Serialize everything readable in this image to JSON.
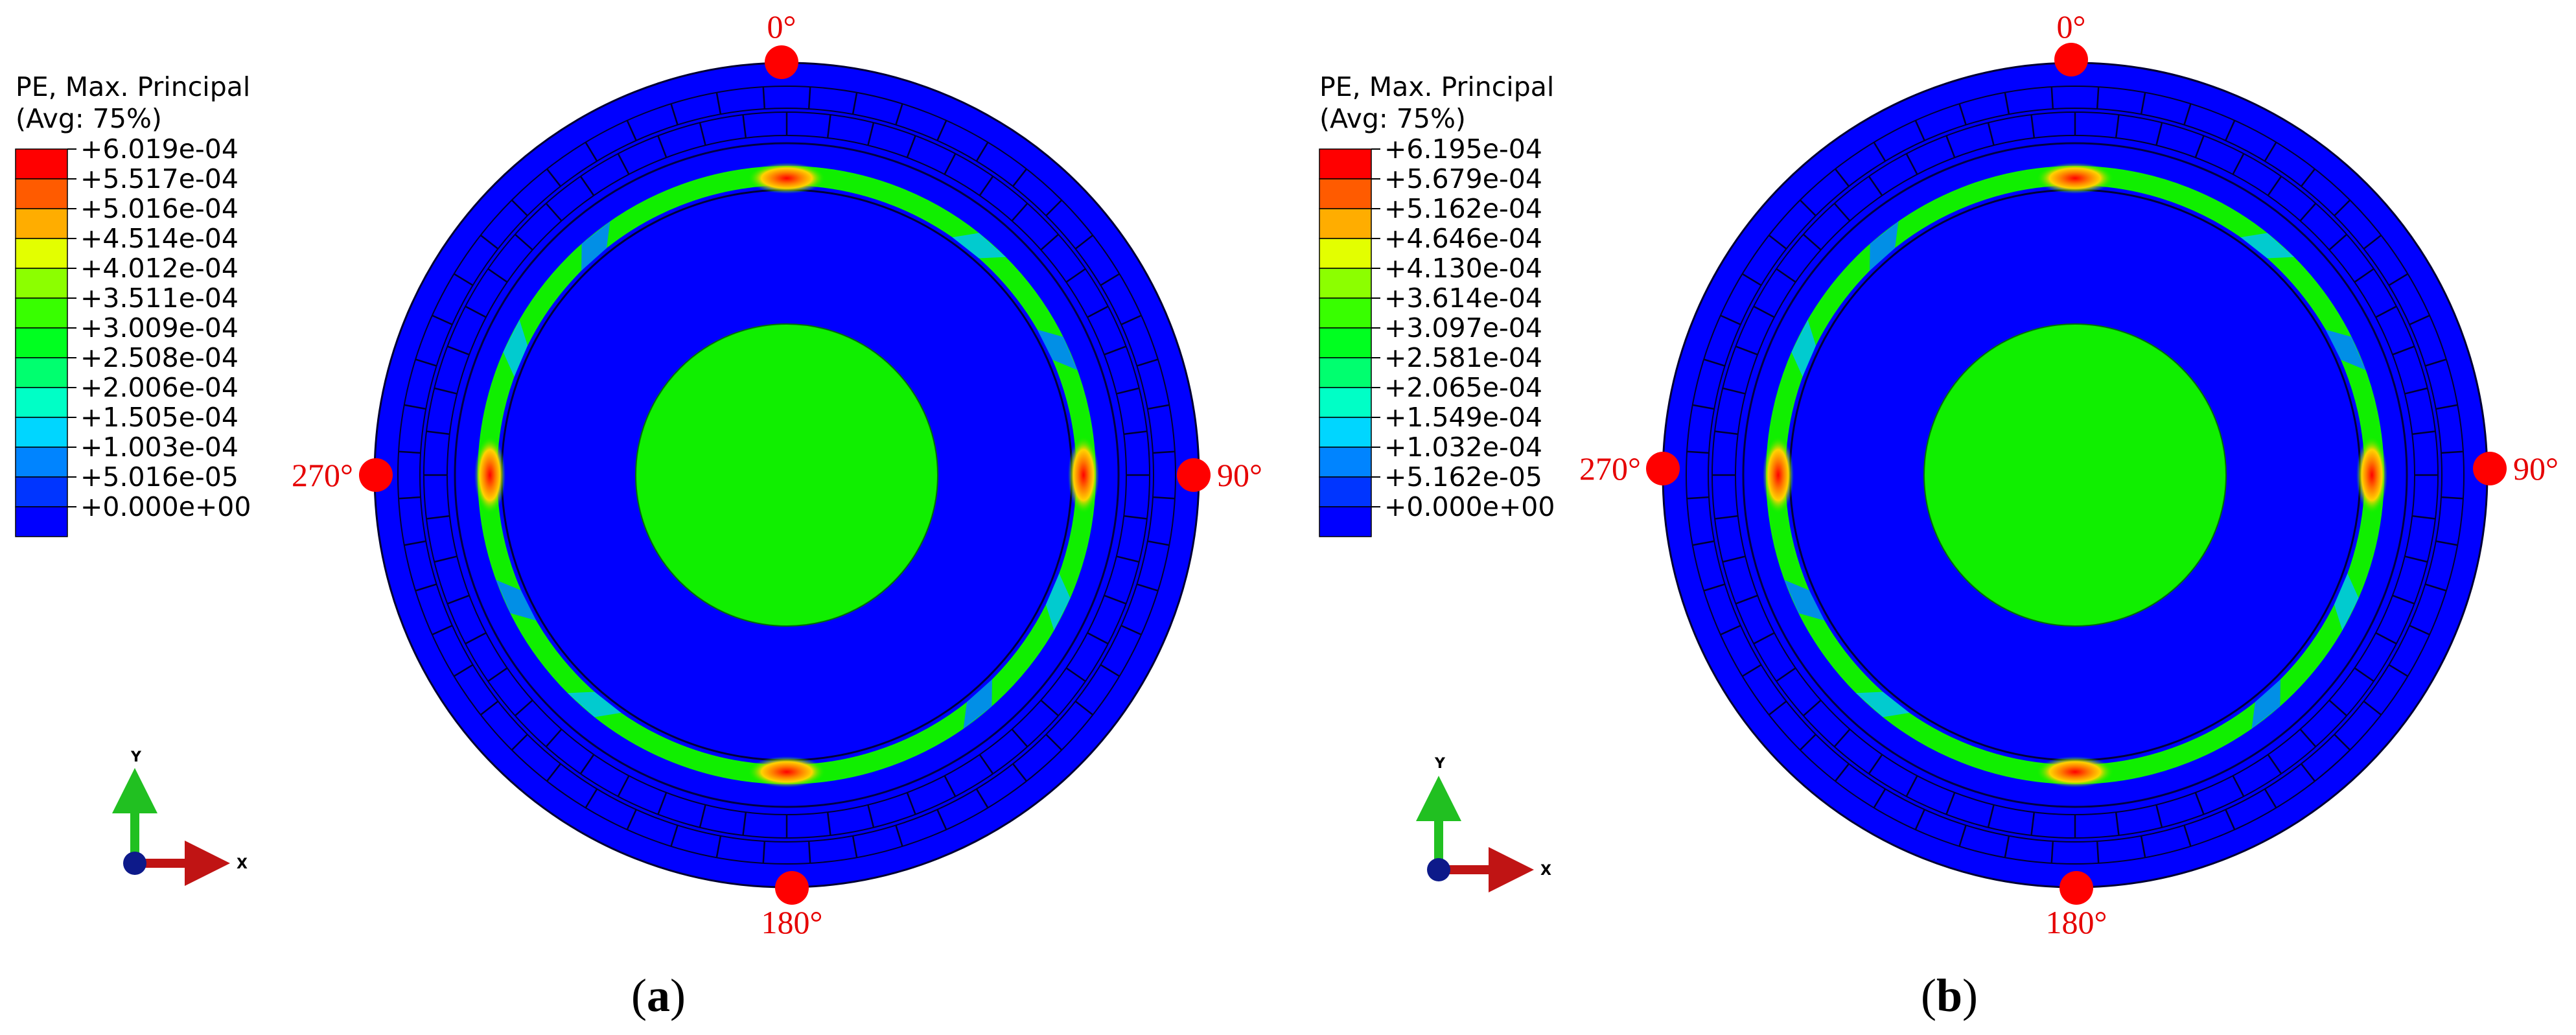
{
  "panels": [
    {
      "id": "a",
      "legend_title_line1": "PE, Max. Principal",
      "legend_title_line2": "(Avg: 75%)",
      "legend_values": [
        "+6.019e-04",
        "+5.517e-04",
        "+5.016e-04",
        "+4.514e-04",
        "+4.012e-04",
        "+3.511e-04",
        "+3.009e-04",
        "+2.508e-04",
        "+2.006e-04",
        "+1.505e-04",
        "+1.003e-04",
        "+5.016e-05",
        "+0.000e+00"
      ],
      "angles": {
        "top": "0°",
        "right": "90°",
        "bottom": "180°",
        "left": "270°"
      },
      "axes": {
        "y": "Y",
        "x": "X"
      },
      "caption_open": "(",
      "caption_letter": "a",
      "caption_close": ")"
    },
    {
      "id": "b",
      "legend_title_line1": "PE, Max. Principal",
      "legend_title_line2": "(Avg: 75%)",
      "legend_values": [
        "+6.195e-04",
        "+5.679e-04",
        "+5.162e-04",
        "+4.646e-04",
        "+4.130e-04",
        "+3.614e-04",
        "+3.097e-04",
        "+2.581e-04",
        "+2.065e-04",
        "+1.549e-04",
        "+1.032e-04",
        "+5.162e-05",
        "+0.000e+00"
      ],
      "angles": {
        "top": "0°",
        "right": "90°",
        "bottom": "180°",
        "left": "270°"
      },
      "axes": {
        "y": "Y",
        "x": "X"
      },
      "caption_open": "(",
      "caption_letter": "b",
      "caption_close": ")"
    }
  ],
  "colors": {
    "contour_scale": [
      "#ff0000",
      "#ff5b00",
      "#ffad00",
      "#e3ff00",
      "#8cff00",
      "#38ff00",
      "#00ff20",
      "#00ff6f",
      "#00ffc6",
      "#00d6ff",
      "#0084ff",
      "#0035ff",
      "#0000ff"
    ],
    "background_blue": "#0000ff",
    "core_green": "#10ef00",
    "marker_red": "#ff0000",
    "label_red": "#e60000"
  }
}
